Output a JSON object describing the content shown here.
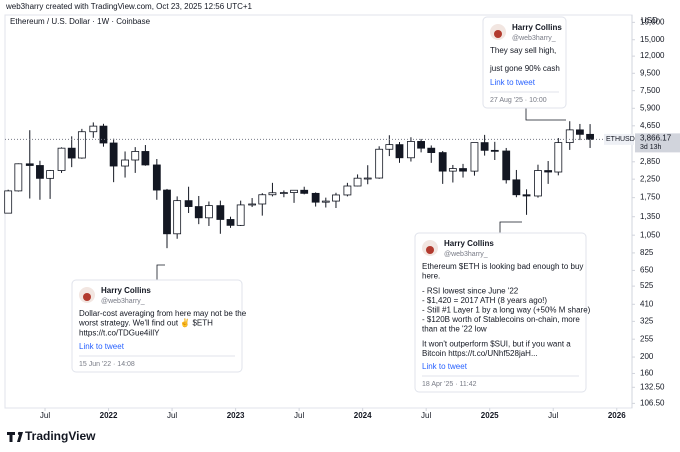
{
  "header": {
    "credit": "web3harry created with TradingView.com, Oct 23, 2025 12:56 UTC+1",
    "symbol": "Ethereum / U.S. Dollar · 1W · Coinbase",
    "currency": "USD",
    "logo": "TradingView"
  },
  "chart_data": {
    "type": "candlestick",
    "log_scale": true,
    "grid": false,
    "up_color": "#ffffff",
    "down_color": "#131722",
    "border_color": "#131722",
    "x": [
      2021.21,
      2021.29,
      2021.38,
      2021.46,
      2021.54,
      2021.63,
      2021.71,
      2021.79,
      2021.88,
      2021.96,
      2022.04,
      2022.13,
      2022.21,
      2022.29,
      2022.38,
      2022.46,
      2022.54,
      2022.63,
      2022.71,
      2022.79,
      2022.88,
      2022.96,
      2023.04,
      2023.13,
      2023.21,
      2023.29,
      2023.38,
      2023.46,
      2023.54,
      2023.63,
      2023.71,
      2023.79,
      2023.88,
      2023.96,
      2024.04,
      2024.13,
      2024.21,
      2024.29,
      2024.38,
      2024.46,
      2024.54,
      2024.63,
      2024.71,
      2024.79,
      2024.88,
      2024.96,
      2025.04,
      2025.13,
      2025.21,
      2025.29,
      2025.38,
      2025.46,
      2025.54,
      2025.63,
      2025.71,
      2025.79
    ],
    "open": [
      1417,
      1918,
      2773,
      2710,
      2275,
      2530,
      3430,
      3000,
      4290,
      4630,
      3680,
      2690,
      2920,
      3280,
      2730,
      1940,
      1070,
      1680,
      1550,
      1330,
      1570,
      1300,
      1200,
      1585,
      1605,
      1820,
      1870,
      1875,
      1935,
      1855,
      1645,
      1670,
      1815,
      2050,
      2280,
      2285,
      3380,
      3600,
      3010,
      3760,
      3430,
      3230,
      2510,
      2600,
      2510,
      3700,
      3330,
      3300,
      2230,
      1820,
      1790,
      2530,
      2480,
      3700,
      4400,
      4140
    ],
    "high": [
      1950,
      2790,
      4380,
      2890,
      2550,
      3470,
      4030,
      4460,
      4870,
      4780,
      3900,
      3280,
      3480,
      3580,
      2960,
      1970,
      1780,
      2030,
      1790,
      1660,
      1680,
      1350,
      1680,
      1740,
      1860,
      2140,
      1930,
      1930,
      2030,
      1880,
      1750,
      1870,
      2140,
      2400,
      2720,
      3520,
      4090,
      3730,
      3980,
      3890,
      3560,
      3300,
      2730,
      2770,
      3690,
      4110,
      3740,
      3440,
      2550,
      1960,
      2740,
      2880,
      3940,
      4950,
      4770,
      4760
    ],
    "low": [
      1550,
      1900,
      1730,
      1700,
      1720,
      2450,
      2650,
      2970,
      3950,
      3500,
      2160,
      2300,
      2450,
      2700,
      1700,
      880,
      1000,
      1420,
      1220,
      1190,
      1070,
      1160,
      1190,
      1540,
      1370,
      1780,
      1760,
      1630,
      1830,
      1550,
      1530,
      1520,
      1780,
      2040,
      2100,
      2260,
      3080,
      2810,
      2860,
      3240,
      2810,
      2110,
      2150,
      2300,
      2360,
      3100,
      2920,
      2120,
      1760,
      1385,
      1750,
      2110,
      2370,
      3350,
      3830,
      3440
    ],
    "close": [
      1918,
      2773,
      2710,
      2275,
      2530,
      3430,
      3000,
      4290,
      4630,
      3680,
      2690,
      2920,
      3280,
      2730,
      1940,
      1070,
      1680,
      1550,
      1330,
      1570,
      1300,
      1200,
      1585,
      1605,
      1820,
      1870,
      1875,
      1935,
      1855,
      1645,
      1670,
      1815,
      2050,
      2280,
      2285,
      3380,
      3600,
      3010,
      3760,
      3430,
      3230,
      2510,
      2600,
      2510,
      3700,
      3330,
      3300,
      2230,
      1820,
      1790,
      2530,
      2480,
      3700,
      4400,
      4140,
      3866.17
    ],
    "xlim": [
      2021.185,
      2026.12
    ],
    "xticks": [
      {
        "value": 2021.5,
        "label": "Jul"
      },
      2022,
      {
        "value": 2022.5,
        "label": "Jul"
      },
      2023,
      {
        "value": 2023.5,
        "label": "Jul"
      },
      2024,
      {
        "value": 2024.5,
        "label": "Jul"
      },
      2025,
      {
        "value": 2025.5,
        "label": "Jul"
      },
      2026
    ],
    "ylim": [
      100,
      21000
    ],
    "yticks": [
      {
        "value": 19000,
        "label": "19,000"
      },
      {
        "value": 15000,
        "label": "15,000"
      },
      {
        "value": 12000,
        "label": "12,000"
      },
      {
        "value": 9500,
        "label": "9,500"
      },
      {
        "value": 7500,
        "label": "7,500"
      },
      {
        "value": 5900,
        "label": "5,900"
      },
      {
        "value": 4650,
        "label": "4,650"
      },
      {
        "value": 2850,
        "label": "2,850"
      },
      {
        "value": 2250,
        "label": "2,250"
      },
      {
        "value": 1750,
        "label": "1,750"
      },
      {
        "value": 1350,
        "label": "1,350"
      },
      {
        "value": 1050,
        "label": "1,050"
      },
      825,
      650,
      525,
      410,
      325,
      255,
      200,
      160,
      {
        "value": 132.5,
        "label": "132.50"
      },
      {
        "value": 106.5,
        "label": "106.50"
      }
    ],
    "last_price": {
      "symbol": "ETHUSD",
      "value": 3866.17,
      "label": "3,866.17",
      "countdown": "3d 13h"
    }
  },
  "tweets": [
    {
      "author": "Harry Collins",
      "handle": "@web3harry_",
      "body": [
        [
          "They say sell high,"
        ],
        [
          "just gone 90% cash"
        ]
      ],
      "link": "Link to tweet",
      "date": "27 Aug '25 · 10:00"
    },
    {
      "author": "Harry Collins",
      "handle": "@web3harry_",
      "body": [
        [
          "Ethereum $ETH is looking bad enough to buy",
          "here."
        ],
        [
          "- RSI lowest since June '22",
          "- $1,420 = 2017 ATH (8 years ago!)",
          "- Still #1 Layer 1 by a long way (+50% M share)",
          "- $120B worth of Stablecoins on-chain, more",
          "than at the '22 low"
        ],
        [
          "It won't outperform $SUI, but if you want a",
          "Bitcoin https://t.co/UNhf528jaH..."
        ]
      ],
      "link": "Link to tweet",
      "date": "18 Apr '25 · 11:42"
    },
    {
      "author": "Harry Collins",
      "handle": "@web3harry_",
      "body": [
        [
          "Dollar-cost averaging from here may not be the",
          "worst strategy. We'll find out ✌️ $ETH",
          "https://t.co/TDGue4iIlY"
        ]
      ],
      "link": "Link to tweet",
      "date": "15 Jun '22 · 14:08"
    }
  ]
}
